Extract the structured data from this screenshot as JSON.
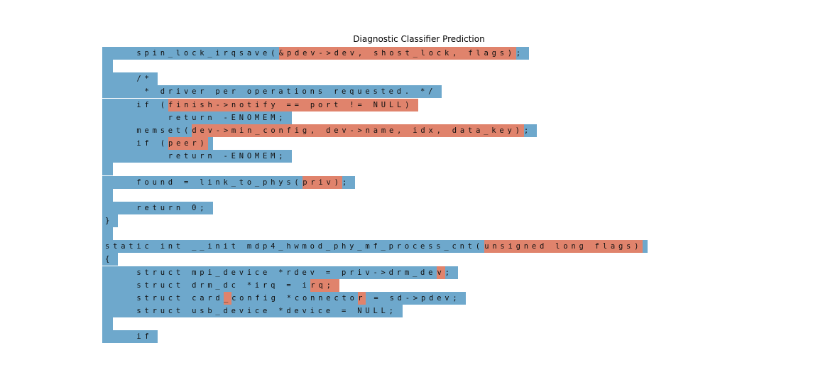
{
  "title": "Diagnostic Classifier Prediction",
  "colors": {
    "base_token": "#6ea8cc",
    "predicted_token": "#e0836c"
  },
  "lines": [
    {
      "segments": [
        {
          "t": "    spin_lock_irqsave(",
          "c": "b"
        },
        {
          "t": "&pdev->dev, shost_lock, flags)",
          "c": "o"
        },
        {
          "t": ";",
          "c": "b"
        }
      ]
    },
    {
      "segments": [
        {
          "t": "",
          "c": "b"
        }
      ]
    },
    {
      "segments": [
        {
          "t": "    /*",
          "c": "b"
        }
      ]
    },
    {
      "segments": [
        {
          "t": "     * driver per operations requested. */",
          "c": "b"
        }
      ]
    },
    {
      "segments": [
        {
          "t": "    if (",
          "c": "b"
        },
        {
          "t": "finish->notify == port != NULL)",
          "c": "o"
        }
      ]
    },
    {
      "segments": [
        {
          "t": "        return -ENOMEM;",
          "c": "b"
        }
      ]
    },
    {
      "segments": [
        {
          "t": "    memset(",
          "c": "b"
        },
        {
          "t": "dev->min_config, dev->name, idx, data_key)",
          "c": "o"
        },
        {
          "t": ";",
          "c": "b"
        }
      ]
    },
    {
      "segments": [
        {
          "t": "    if (",
          "c": "b"
        },
        {
          "t": "peer)",
          "c": "o"
        },
        {
          "t": "",
          "c": "b"
        }
      ]
    },
    {
      "segments": [
        {
          "t": "        return -ENOMEM;",
          "c": "b"
        }
      ]
    },
    {
      "segments": [
        {
          "t": "",
          "c": "b"
        }
      ]
    },
    {
      "segments": [
        {
          "t": "    found = link_to_phys(",
          "c": "b"
        },
        {
          "t": "priv)",
          "c": "o"
        },
        {
          "t": ";",
          "c": "b"
        }
      ]
    },
    {
      "segments": [
        {
          "t": "",
          "c": "b"
        }
      ]
    },
    {
      "segments": [
        {
          "t": "    return 0;",
          "c": "b"
        }
      ]
    },
    {
      "segments": [
        {
          "t": "}",
          "c": "b"
        }
      ]
    },
    {
      "segments": [
        {
          "t": "",
          "c": "b"
        }
      ]
    },
    {
      "segments": [
        {
          "t": "static int __init mdp4_hwmod_phy_mf_process_cnt(",
          "c": "b"
        },
        {
          "t": "unsigned long flags)",
          "c": "o"
        },
        {
          "t": "",
          "c": "b"
        }
      ]
    },
    {
      "segments": [
        {
          "t": "{",
          "c": "b"
        }
      ]
    },
    {
      "segments": [
        {
          "t": "    struct mpi_device *rdev = priv->drm_de",
          "c": "b"
        },
        {
          "t": "v",
          "c": "o"
        },
        {
          "t": ";",
          "c": "b"
        }
      ]
    },
    {
      "segments": [
        {
          "t": "    struct drm_dc *irq = i",
          "c": "b"
        },
        {
          "t": "rq;",
          "c": "o"
        }
      ]
    },
    {
      "segments": [
        {
          "t": "    struct card",
          "c": "b"
        },
        {
          "t": "_",
          "c": "o"
        },
        {
          "t": "config *connecto",
          "c": "b"
        },
        {
          "t": "r",
          "c": "o"
        },
        {
          "t": " = sd->pdev;",
          "c": "b"
        }
      ]
    },
    {
      "segments": [
        {
          "t": "    struct usb_device *device = NULL;",
          "c": "b"
        }
      ]
    },
    {
      "segments": [
        {
          "t": "",
          "c": "b"
        }
      ]
    },
    {
      "segments": [
        {
          "t": "    if",
          "c": "b"
        }
      ]
    }
  ]
}
